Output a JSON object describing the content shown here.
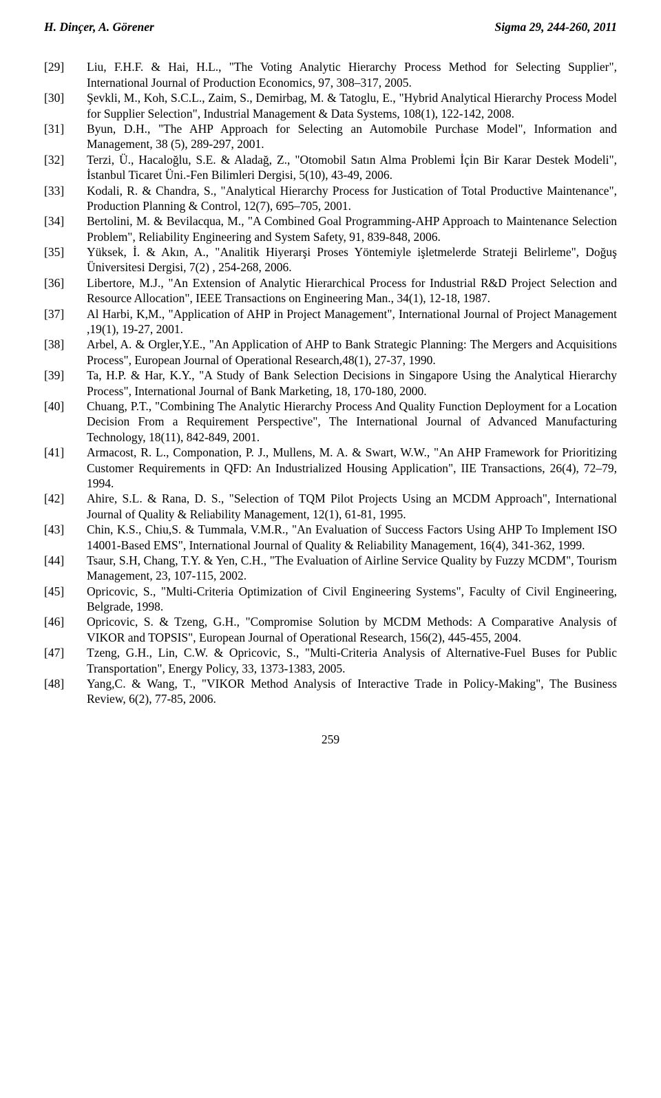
{
  "header": {
    "left": "H. Dinçer, A. Görener",
    "right": "Sigma 29, 244-260, 2011"
  },
  "refs": [
    {
      "n": "[29]",
      "t": "Liu, F.H.F. & Hai, H.L., \"The Voting Analytic Hierarchy Process Method for Selecting Supplier\", International Journal of Production Economics, 97, 308–317, 2005."
    },
    {
      "n": "[30]",
      "t": "Şevkli, M., Koh, S.C.L., Zaim, S., Demirbag, M. & Tatoglu, E., \"Hybrid Analytical Hierarchy Process Model for Supplier Selection\", Industrial Management & Data Systems, 108(1), 122-142, 2008."
    },
    {
      "n": "[31]",
      "t": "Byun, D.H., \"The AHP Approach for Selecting an Automobile Purchase Model\", Information and Management, 38 (5), 289-297, 2001."
    },
    {
      "n": "[32]",
      "t": "Terzi, Ü., Hacaloğlu, S.E. & Aladağ, Z., \"Otomobil Satın Alma Problemi İçin Bir Karar Destek Modeli\", İstanbul Ticaret Üni.-Fen Bilimleri Dergisi, 5(10), 43-49, 2006."
    },
    {
      "n": "[33]",
      "t": "Kodali, R. & Chandra, S., \"Analytical Hierarchy Process for Justication of Total Productive Maintenance\", Production Planning & Control, 12(7), 695–705, 2001."
    },
    {
      "n": "[34]",
      "t": "Bertolini, M. & Bevilacqua, M., \"A Combined Goal Programming-AHP Approach to Maintenance Selection Problem\", Reliability Engineering and System Safety, 91, 839-848, 2006."
    },
    {
      "n": "[35]",
      "t": "Yüksek, İ. & Akın, A., \"Analitik Hiyerarşi Proses Yöntemiyle işletmelerde Strateji Belirleme\", Doğuş Üniversitesi Dergisi, 7(2) , 254-268, 2006."
    },
    {
      "n": "[36]",
      "t": "Libertore, M.J., \"An Extension of Analytic Hierarchical Process for Industrial R&D Project Selection and Resource Allocation\", IEEE Transactions on Engineering Man., 34(1), 12-18, 1987."
    },
    {
      "n": "[37]",
      "t": "Al Harbi, K,M., \"Application of AHP in Project Management\", International Journal of Project Management ,19(1), 19-27, 2001."
    },
    {
      "n": "[38]",
      "t": "Arbel, A. & Orgler,Y.E., \"An Application of AHP to Bank Strategic Planning: The Mergers and Acquisitions Process\", European Journal of Operational Research,48(1), 27-37, 1990."
    },
    {
      "n": "[39]",
      "t": "Ta, H.P. & Har, K.Y., \"A Study of Bank Selection Decisions in Singapore Using the Analytical Hierarchy Process\", International Journal of Bank Marketing, 18, 170-180, 2000."
    },
    {
      "n": "[40]",
      "t": "Chuang, P.T., \"Combining The Analytic Hierarchy Process And Quality Function Deployment for a Location Decision From a Requirement Perspective\", The International Journal of Advanced Manufacturing Technology, 18(11), 842-849, 2001."
    },
    {
      "n": "[41]",
      "t": "Armacost, R. L., Componation, P. J., Mullens, M. A. & Swart, W.W., \"An AHP Framework for Prioritizing Customer Requirements in QFD: An Industrialized Housing Application\", IIE Transactions, 26(4), 72–79, 1994."
    },
    {
      "n": "[42]",
      "t": "Ahire, S.L. & Rana, D. S., \"Selection of TQM Pilot Projects Using an MCDM Approach\", International Journal of Quality & Reliability Management, 12(1), 61-81, 1995."
    },
    {
      "n": "[43]",
      "t": "Chin, K.S., Chiu,S. & Tummala, V.M.R., \"An Evaluation of Success Factors Using AHP To Implement ISO 14001-Based EMS\", International Journal of Quality & Reliability Management, 16(4), 341-362, 1999."
    },
    {
      "n": "[44]",
      "t": "Tsaur, S.H, Chang, T.Y. & Yen, C.H., \"The Evaluation of Airline Service Quality by Fuzzy MCDM\", Tourism Management, 23, 107-115, 2002."
    },
    {
      "n": "[45]",
      "t": "Opricovic, S., \"Multi-Criteria Optimization of Civil Engineering Systems\", Faculty of Civil Engineering, Belgrade, 1998."
    },
    {
      "n": "[46]",
      "t": "Opricovic, S. & Tzeng, G.H., \"Compromise Solution by MCDM Methods: A Comparative Analysis of  VIKOR and TOPSIS\", European Journal of Operational Research, 156(2), 445-455, 2004."
    },
    {
      "n": "[47]",
      "t": "Tzeng, G.H., Lin, C.W. & Opricovic, S., \"Multi-Criteria Analysis of Alternative-Fuel Buses for Public Transportation\", Energy Policy, 33, 1373-1383, 2005."
    },
    {
      "n": "[48]",
      "t": "Yang,C. & Wang, T., \"VIKOR Method Analysis of Interactive Trade in Policy-Making\", The Business Review, 6(2), 77-85, 2006."
    }
  ],
  "page_number": "259"
}
